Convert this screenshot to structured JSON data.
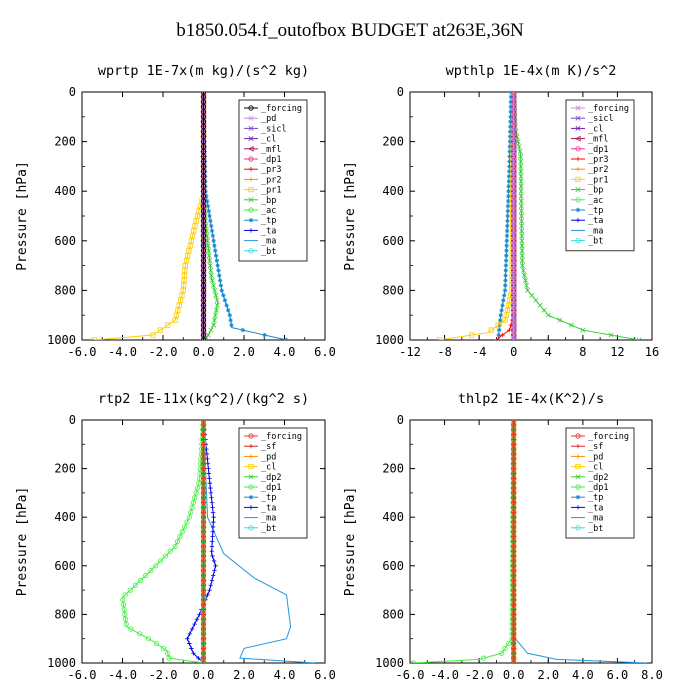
{
  "page_title": "b1850.054.f_outofbox  BUDGET at263E,36N",
  "chart_data": [
    {
      "type": "line",
      "title": "wprtp  1E-7x(m kg)/(s^2 kg)",
      "ylabel": "Pressure [hPa]",
      "xlim": [
        -6,
        6
      ],
      "ylim": [
        1000,
        0
      ],
      "xticks": [
        "-6.0",
        "-4.0",
        "-2.0",
        "0.0",
        "2.0",
        "4.0",
        "6.0"
      ],
      "yticks": [
        "0",
        "200",
        "400",
        "600",
        "800",
        "1000"
      ],
      "legend_position": "top-right",
      "series": [
        {
          "name": "_forcing",
          "color": "#000000",
          "marker": "o",
          "points": [
            [
              0,
              0
            ],
            [
              0,
              1000
            ]
          ]
        },
        {
          "name": "_pd",
          "color": "#cc88ee",
          "marker": "x",
          "points": [
            [
              0,
              0
            ],
            [
              0,
              1000
            ]
          ]
        },
        {
          "name": "_sicl",
          "color": "#7744cc",
          "marker": "x",
          "points": [
            [
              0,
              0
            ],
            [
              0,
              1000
            ]
          ]
        },
        {
          "name": "_cl",
          "color": "#6622aa",
          "marker": "x",
          "points": [
            [
              0,
              0
            ],
            [
              0,
              1000
            ]
          ]
        },
        {
          "name": "_mfl",
          "color": "#aa1155",
          "marker": "<",
          "points": [
            [
              0,
              0
            ],
            [
              0,
              1000
            ]
          ]
        },
        {
          "name": "_dp1",
          "color": "#ee3388",
          "marker": "o",
          "points": [
            [
              0,
              0
            ],
            [
              0,
              1000
            ]
          ]
        },
        {
          "name": "_pr3",
          "color": "#ff0000",
          "marker": "+",
          "points": [
            [
              0,
              0
            ],
            [
              0,
              1000
            ]
          ]
        },
        {
          "name": "_pr2",
          "color": "#ff8800",
          "marker": "+",
          "points": [
            [
              0,
              0
            ],
            [
              0,
              1000
            ]
          ]
        },
        {
          "name": "_pr1",
          "color": "#ffcc00",
          "marker": "s",
          "points": [
            [
              0,
              0
            ],
            [
              0,
              420
            ],
            [
              -0.3,
              500
            ],
            [
              -0.6,
              600
            ],
            [
              -0.9,
              700
            ],
            [
              -1.0,
              800
            ],
            [
              -1.4,
              920
            ],
            [
              -2.5,
              980
            ],
            [
              -5.4,
              1000
            ]
          ]
        },
        {
          "name": "_bp",
          "color": "#33cc33",
          "marker": "x",
          "points": [
            [
              0,
              0
            ],
            [
              0,
              450
            ],
            [
              0.2,
              600
            ],
            [
              0.4,
              750
            ],
            [
              0.7,
              850
            ],
            [
              0.5,
              940
            ],
            [
              0.1,
              1000
            ]
          ]
        },
        {
          "name": "_ac",
          "color": "#44ee44",
          "marker": "o",
          "points": [
            [
              0,
              0
            ],
            [
              0,
              1000
            ]
          ]
        },
        {
          "name": "_tp",
          "color": "#1188cc",
          "marker": "*",
          "points": [
            [
              0,
              0
            ],
            [
              0.1,
              400
            ],
            [
              0.3,
              500
            ],
            [
              0.5,
              600
            ],
            [
              0.7,
              700
            ],
            [
              0.9,
              800
            ],
            [
              1.3,
              900
            ],
            [
              1.4,
              950
            ],
            [
              4.1,
              1000
            ]
          ]
        },
        {
          "name": "_ta",
          "color": "#0000ee",
          "marker": "+",
          "points": [
            [
              0,
              0
            ],
            [
              0,
              1000
            ]
          ]
        },
        {
          "name": "_ma",
          "color": "#2299dd",
          "marker": "none",
          "points": [
            [
              0,
              0
            ],
            [
              0,
              1000
            ]
          ]
        },
        {
          "name": "_bt",
          "color": "#33dddd",
          "marker": "o",
          "points": [
            [
              0,
              0
            ],
            [
              0,
              1000
            ]
          ]
        }
      ]
    },
    {
      "type": "line",
      "title": "wpthlp  1E-4x(m K)/s^2",
      "ylabel": "Pressure [hPa]",
      "xlim": [
        -12,
        16
      ],
      "ylim": [
        1000,
        0
      ],
      "xticks": [
        "-12",
        "-8",
        "-4",
        "0",
        "4",
        "8",
        "12",
        "16"
      ],
      "yticks": [
        "0",
        "200",
        "400",
        "600",
        "800",
        "1000"
      ],
      "legend_position": "top-right",
      "series": [
        {
          "name": "_forcing",
          "color": "#cc88ee",
          "marker": "x",
          "points": [
            [
              0,
              0
            ],
            [
              0,
              1000
            ]
          ]
        },
        {
          "name": "_sicl",
          "color": "#7744cc",
          "marker": "x",
          "points": [
            [
              0,
              0
            ],
            [
              0,
              1000
            ]
          ]
        },
        {
          "name": "_cl",
          "color": "#6622aa",
          "marker": "x",
          "points": [
            [
              0,
              0
            ],
            [
              0,
              1000
            ]
          ]
        },
        {
          "name": "_mfl",
          "color": "#aa1155",
          "marker": "<",
          "points": [
            [
              0,
              0
            ],
            [
              0,
              1000
            ]
          ]
        },
        {
          "name": "_dp1",
          "color": "#ee3388",
          "marker": "o",
          "points": [
            [
              0,
              0
            ],
            [
              0,
              1000
            ]
          ]
        },
        {
          "name": "_pr3",
          "color": "#ff0000",
          "marker": "+",
          "points": [
            [
              0,
              0
            ],
            [
              0,
              900
            ],
            [
              -0.5,
              960
            ],
            [
              -1.5,
              985
            ],
            [
              -2.0,
              1000
            ]
          ]
        },
        {
          "name": "_pr2",
          "color": "#ff8800",
          "marker": "+",
          "points": [
            [
              0,
              0
            ],
            [
              0,
              1000
            ]
          ]
        },
        {
          "name": "_pr1",
          "color": "#ffcc00",
          "marker": "s",
          "points": [
            [
              0,
              0
            ],
            [
              -0.2,
              800
            ],
            [
              -1.0,
              920
            ],
            [
              -3.0,
              970
            ],
            [
              -8.6,
              1000
            ]
          ]
        },
        {
          "name": "_bp",
          "color": "#33cc33",
          "marker": "x",
          "points": [
            [
              0,
              0
            ],
            [
              0.2,
              150
            ],
            [
              0.8,
              250
            ],
            [
              0.9,
              500
            ],
            [
              1.0,
              700
            ],
            [
              1.6,
              800
            ],
            [
              4,
              900
            ],
            [
              8,
              960
            ],
            [
              14.5,
              1000
            ]
          ]
        },
        {
          "name": "_ac",
          "color": "#44ee44",
          "marker": "o",
          "points": [
            [
              0,
              0
            ],
            [
              0,
              1000
            ]
          ]
        },
        {
          "name": "_tp",
          "color": "#1188cc",
          "marker": "*",
          "points": [
            [
              -0.3,
              0
            ],
            [
              -0.5,
              300
            ],
            [
              -0.8,
              600
            ],
            [
              -1.0,
              800
            ],
            [
              -1.5,
              900
            ],
            [
              -1.8,
              1000
            ]
          ]
        },
        {
          "name": "_ta",
          "color": "#0000ee",
          "marker": "+",
          "points": [
            [
              0,
              0
            ],
            [
              0,
              1000
            ]
          ]
        },
        {
          "name": "_ma",
          "color": "#2299dd",
          "marker": "none",
          "points": [
            [
              0,
              0
            ],
            [
              0,
              1000
            ]
          ]
        },
        {
          "name": "_bt",
          "color": "#33dddd",
          "marker": "o",
          "points": [
            [
              0,
              0
            ],
            [
              0,
              1000
            ]
          ]
        }
      ]
    },
    {
      "type": "line",
      "title": "rtp2  1E-11x(kg^2)/(kg^2 s)",
      "ylabel": "Pressure [hPa]",
      "xlim": [
        -6,
        6
      ],
      "ylim": [
        1000,
        0
      ],
      "xticks": [
        "-6.0",
        "-4.0",
        "-2.0",
        "0.0",
        "2.0",
        "4.0",
        "6.0"
      ],
      "yticks": [
        "0",
        "200",
        "400",
        "600",
        "800",
        "1000"
      ],
      "legend_position": "top-right",
      "series": [
        {
          "name": "_forcing",
          "color": "#ee3333",
          "marker": "o",
          "points": [
            [
              0,
              0
            ],
            [
              0,
              1000
            ]
          ]
        },
        {
          "name": "_sf",
          "color": "#dd2222",
          "marker": "+",
          "points": [
            [
              0,
              0
            ],
            [
              0,
              1000
            ]
          ]
        },
        {
          "name": "_pd",
          "color": "#ff8800",
          "marker": "+",
          "points": [
            [
              0,
              0
            ],
            [
              0,
              1000
            ]
          ]
        },
        {
          "name": "_cl",
          "color": "#ffcc00",
          "marker": "s",
          "points": [
            [
              0,
              0
            ],
            [
              0,
              1000
            ]
          ]
        },
        {
          "name": "_dp2",
          "color": "#33cc33",
          "marker": "x",
          "points": [
            [
              0,
              0
            ],
            [
              0,
              1000
            ]
          ]
        },
        {
          "name": "_dp1",
          "color": "#44ee44",
          "marker": "o",
          "points": [
            [
              0,
              0
            ],
            [
              -0.2,
              250
            ],
            [
              -0.7,
              400
            ],
            [
              -1.4,
              520
            ],
            [
              -2.6,
              620
            ],
            [
              -4.0,
              730
            ],
            [
              -3.8,
              850
            ],
            [
              -2.5,
              910
            ],
            [
              -1.8,
              950
            ],
            [
              -1.7,
              980
            ],
            [
              0,
              1000
            ]
          ]
        },
        {
          "name": "_tp",
          "color": "#1188cc",
          "marker": "*",
          "points": [
            [
              0,
              0
            ],
            [
              0,
              1000
            ]
          ]
        },
        {
          "name": "_ta",
          "color": "#0000ee",
          "marker": "+",
          "points": [
            [
              0,
              0
            ],
            [
              0.3,
              250
            ],
            [
              0.5,
              400
            ],
            [
              0.4,
              550
            ],
            [
              0.6,
              600
            ],
            [
              0.3,
              700
            ],
            [
              -0.2,
              800
            ],
            [
              -0.8,
              900
            ],
            [
              -0.5,
              960
            ],
            [
              0,
              1000
            ]
          ]
        },
        {
          "name": "_ma",
          "color": "#2299dd",
          "marker": "none",
          "points": [
            [
              0,
              0
            ],
            [
              0.2,
              400
            ],
            [
              1.0,
              550
            ],
            [
              2.5,
              650
            ],
            [
              4.1,
              720
            ],
            [
              4.3,
              850
            ],
            [
              4.1,
              900
            ],
            [
              2.0,
              940
            ],
            [
              1.8,
              980
            ],
            [
              5.5,
              1000
            ]
          ]
        },
        {
          "name": "_bt",
          "color": "#33dddd",
          "marker": "o",
          "points": [
            [
              0,
              0
            ],
            [
              0,
              1000
            ]
          ]
        }
      ]
    },
    {
      "type": "line",
      "title": "thlp2  1E-4x(K^2)/s",
      "ylabel": "Pressure [hPa]",
      "xlim": [
        -6,
        8
      ],
      "ylim": [
        1000,
        0
      ],
      "xticks": [
        "-6.0",
        "-4.0",
        "-2.0",
        "0.0",
        "2.0",
        "4.0",
        "6.0",
        "8.0"
      ],
      "yticks": [
        "0",
        "200",
        "400",
        "600",
        "800",
        "1000"
      ],
      "legend_position": "top-right",
      "series": [
        {
          "name": "_forcing",
          "color": "#ee3333",
          "marker": "o",
          "points": [
            [
              0,
              0
            ],
            [
              0,
              1000
            ]
          ]
        },
        {
          "name": "_sf",
          "color": "#dd2222",
          "marker": "+",
          "points": [
            [
              0,
              0
            ],
            [
              0,
              1000
            ]
          ]
        },
        {
          "name": "_pd",
          "color": "#ff8800",
          "marker": "+",
          "points": [
            [
              0,
              0
            ],
            [
              0,
              1000
            ]
          ]
        },
        {
          "name": "_cl",
          "color": "#ffcc00",
          "marker": "s",
          "points": [
            [
              0,
              0
            ],
            [
              0,
              1000
            ]
          ]
        },
        {
          "name": "_dp2",
          "color": "#33cc33",
          "marker": "x",
          "points": [
            [
              0,
              0
            ],
            [
              0,
              1000
            ]
          ]
        },
        {
          "name": "_dp1",
          "color": "#44ee44",
          "marker": "o",
          "points": [
            [
              0,
              0
            ],
            [
              -0.1,
              900
            ],
            [
              -0.7,
              960
            ],
            [
              -2.0,
              985
            ],
            [
              -5.8,
              1000
            ]
          ]
        },
        {
          "name": "_tp",
          "color": "#1188cc",
          "marker": "*",
          "points": [
            [
              0,
              0
            ],
            [
              0,
              1000
            ]
          ]
        },
        {
          "name": "_ta",
          "color": "#0000ee",
          "marker": "+",
          "points": [
            [
              0,
              0
            ],
            [
              0,
              1000
            ]
          ]
        },
        {
          "name": "_ma",
          "color": "#2299dd",
          "marker": "none",
          "points": [
            [
              0,
              0
            ],
            [
              0.1,
              900
            ],
            [
              0.8,
              960
            ],
            [
              2.5,
              985
            ],
            [
              7.7,
              1000
            ]
          ]
        },
        {
          "name": "_bt",
          "color": "#33dddd",
          "marker": "o",
          "points": [
            [
              0,
              0
            ],
            [
              0,
              1000
            ]
          ]
        }
      ]
    }
  ]
}
